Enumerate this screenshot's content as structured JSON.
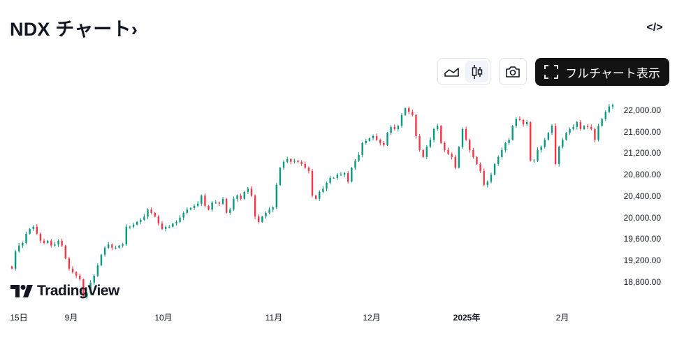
{
  "header": {
    "title": "NDX チャート›",
    "embed_label": "</>"
  },
  "toolbar": {
    "line_chart_icon": "area-line-icon",
    "candle_chart_icon": "candlestick-icon",
    "snapshot_icon": "camera-icon",
    "fullscreen_label": "フルチャート表示"
  },
  "logo": {
    "text": "TradingView"
  },
  "colors": {
    "up": "#089981",
    "down": "#f23645",
    "button_dark": "#131313"
  },
  "chart_data": {
    "type": "candlestick",
    "symbol": "NDX",
    "y_ticks": [
      "22,000.00",
      "21,600.00",
      "21,200.00",
      "20,800.00",
      "20,400.00",
      "20,000.00",
      "19,600.00",
      "19,200.00",
      "18,800.00"
    ],
    "y_tick_values": [
      22000,
      21600,
      21200,
      20800,
      20400,
      20000,
      19600,
      19200,
      18800
    ],
    "x_ticks": [
      "15日",
      "9月",
      "10月",
      "11月",
      "12月",
      "2025年",
      "2月"
    ],
    "grid": false,
    "closes": [
      19050,
      19370,
      19480,
      19530,
      19700,
      19790,
      19830,
      19700,
      19570,
      19530,
      19570,
      19480,
      19500,
      19570,
      19480,
      19240,
      19050,
      18980,
      18920,
      18850,
      18530,
      18590,
      18790,
      18920,
      19110,
      19310,
      19440,
      19500,
      19440,
      19440,
      19480,
      19500,
      19830,
      19830,
      19870,
      19920,
      19960,
      20020,
      20150,
      20090,
      20020,
      19890,
      19790,
      19830,
      19830,
      19890,
      19920,
      20000,
      20090,
      20150,
      20180,
      20220,
      20260,
      20410,
      20220,
      20150,
      20280,
      20280,
      20260,
      20350,
      20090,
      20150,
      20350,
      20410,
      20350,
      20480,
      20540,
      20410,
      20020,
      19920,
      20020,
      20090,
      20150,
      20190,
      20610,
      20930,
      21040,
      21090,
      21040,
      21060,
      21040,
      21000,
      20930,
      20870,
      20410,
      20350,
      20480,
      20540,
      20650,
      20740,
      20740,
      20800,
      20800,
      20830,
      20670,
      20930,
      21060,
      21170,
      21390,
      21430,
      21480,
      21520,
      21450,
      21390,
      21350,
      21580,
      21690,
      21650,
      21710,
      21910,
      22040,
      21970,
      21910,
      21520,
      21260,
      21130,
      21320,
      21450,
      21650,
      21710,
      21390,
      21260,
      21190,
      21130,
      20930,
      21320,
      21650,
      21450,
      21260,
      21130,
      21000,
      20870,
      20610,
      20670,
      20800,
      21000,
      21130,
      21260,
      21390,
      21450,
      21710,
      21840,
      21820,
      21740,
      21780,
      21060,
      21060,
      21260,
      21320,
      21450,
      21580,
      21710,
      21000,
      21320,
      21450,
      21580,
      21650,
      21690,
      21780,
      21650,
      21710,
      21690,
      21650,
      21450,
      21710,
      21840,
      21970,
      22070,
      22100
    ]
  }
}
